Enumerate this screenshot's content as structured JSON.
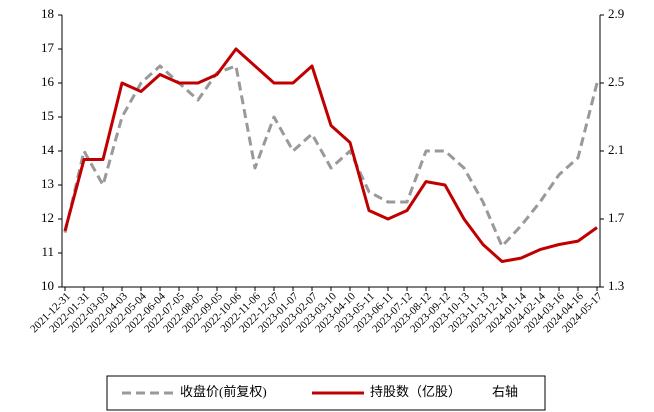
{
  "chart_data": {
    "type": "line",
    "categories": [
      "2021-12-31",
      "2022-01-31",
      "2022-03-03",
      "2022-04-03",
      "2022-05-04",
      "2022-06-04",
      "2022-07-05",
      "2022-08-05",
      "2022-09-05",
      "2022-10-06",
      "2022-11-06",
      "2022-12-07",
      "2023-01-07",
      "2023-02-07",
      "2023-03-10",
      "2023-04-10",
      "2023-05-11",
      "2023-06-11",
      "2023-07-12",
      "2023-08-12",
      "2023-09-12",
      "2023-10-13",
      "2023-11-13",
      "2023-12-14",
      "2024-01-14",
      "2024-02-14",
      "2024-03-16",
      "2024-04-16",
      "2024-05-17"
    ],
    "series": [
      {
        "name": "收盘价(前复权)",
        "color": "#999999",
        "dashed": true,
        "values": [
          11.6,
          14.0,
          13.0,
          15.0,
          16.0,
          16.5,
          16.0,
          15.5,
          16.3,
          16.5,
          13.5,
          15.0,
          14.0,
          14.5,
          13.5,
          14.0,
          12.8,
          12.5,
          12.5,
          14.0,
          14.0,
          13.5,
          12.5,
          11.2,
          11.8,
          12.5,
          13.3,
          13.8,
          16.0
        ]
      },
      {
        "name": "持股数（亿股）",
        "color": "#c00000",
        "axis": "y2",
        "values": [
          1.63,
          2.05,
          2.05,
          2.5,
          2.45,
          2.55,
          2.5,
          2.5,
          2.55,
          2.7,
          2.6,
          2.5,
          2.5,
          2.6,
          2.25,
          2.15,
          1.75,
          1.7,
          1.75,
          1.92,
          1.9,
          1.7,
          1.55,
          1.45,
          1.47,
          1.52,
          1.55,
          1.57,
          1.65
        ]
      }
    ],
    "annotation": "右轴",
    "ylim": [
      10,
      18
    ],
    "yticks": [
      10,
      11,
      12,
      13,
      14,
      15,
      16,
      17,
      18
    ],
    "y2lim": [
      1.3,
      2.9
    ],
    "y2ticks": [
      1.3,
      1.7,
      2.1,
      2.5,
      2.9
    ]
  }
}
